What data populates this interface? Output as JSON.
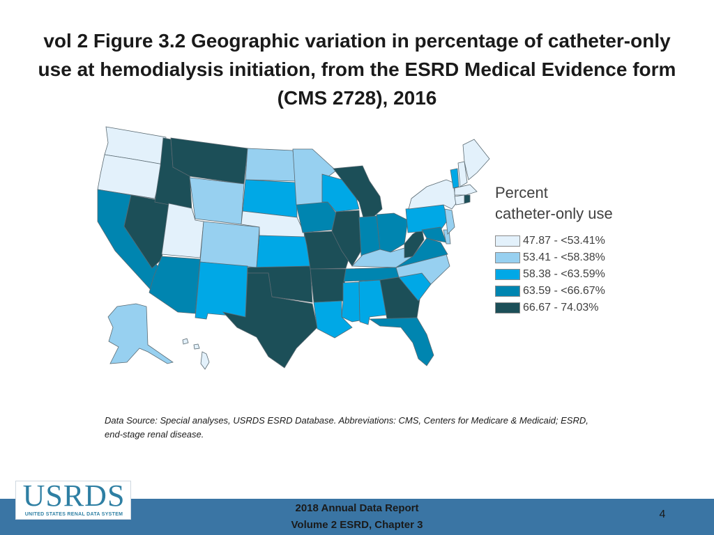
{
  "title": "vol 2 Figure 3.2 Geographic variation in percentage of catheter-only use at hemodialysis initiation, from the ESRD Medical Evidence form (CMS 2728), 2016",
  "legend": {
    "title_line1": "Percent",
    "title_line2": "catheter-only use",
    "bins": [
      {
        "label": "47.87 - <53.41%",
        "color": "#e3f1fb"
      },
      {
        "label": "53.41 - <58.38%",
        "color": "#97d0f0"
      },
      {
        "label": "58.38 - <63.59%",
        "color": "#00a8e6"
      },
      {
        "label": "63.59 - <66.67%",
        "color": "#0085b0"
      },
      {
        "label": "66.67 - 74.03%",
        "color": "#1c4f58"
      }
    ]
  },
  "states": {
    "WA": 0,
    "OR": 0,
    "CA": 3,
    "NV": 4,
    "ID": 4,
    "MT": 4,
    "WY": 1,
    "UT": 0,
    "AZ": 3,
    "NM": 2,
    "CO": 1,
    "ND": 1,
    "SD": 2,
    "NE": 0,
    "KS": 2,
    "OK": 4,
    "TX": 4,
    "MN": 1,
    "IA": 3,
    "MO": 4,
    "AR": 4,
    "LA": 2,
    "WI": 2,
    "IL": 4,
    "MI": 4,
    "IN": 3,
    "OH": 3,
    "KY": 1,
    "TN": 3,
    "MS": 2,
    "AL": 2,
    "GA": 4,
    "FL": 3,
    "SC": 2,
    "NC": 1,
    "VA": 3,
    "WV": 4,
    "MD": 3,
    "DE": 1,
    "NJ": 1,
    "PA": 2,
    "NY": 0,
    "VT": 2,
    "NH": 0,
    "ME": 0,
    "MA": 0,
    "CT": 0,
    "RI": 4,
    "AK": 1,
    "HI": 0
  },
  "data_source": "Data Source: Special analyses, USRDS ESRD Database. Abbreviations: CMS, Centers for Medicare & Medicaid; ESRD, end-stage renal disease.",
  "logo": {
    "word": "USRDS",
    "subtitle": "UNITED STATES RENAL DATA SYSTEM"
  },
  "footer": {
    "line1": "2018 Annual Data Report",
    "line2": "Volume 2 ESRD, Chapter 3"
  },
  "page_number": "4"
}
